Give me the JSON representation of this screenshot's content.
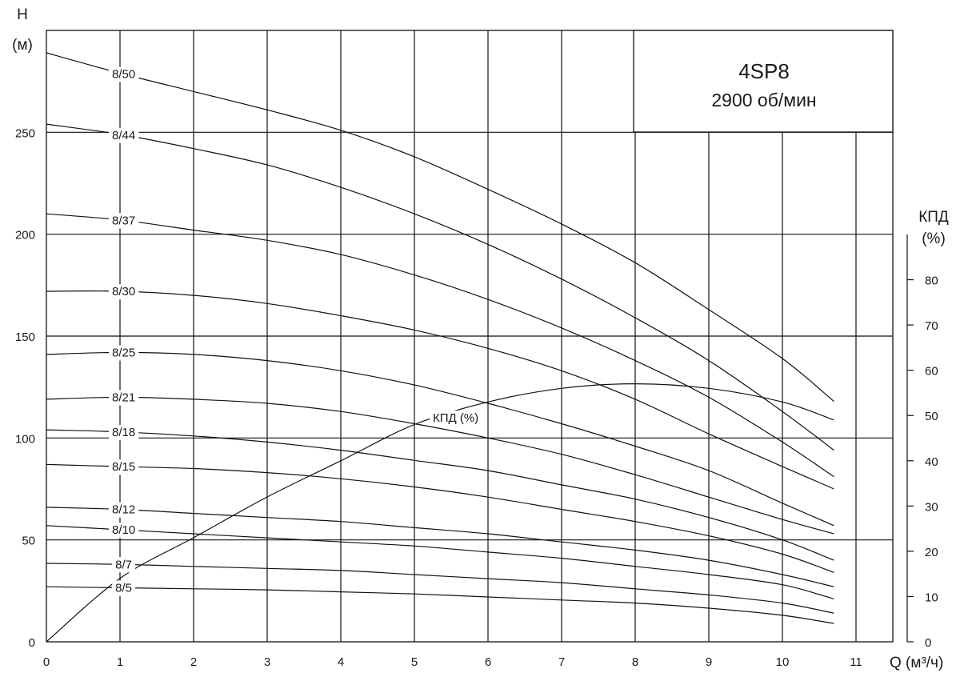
{
  "chart_data": {
    "type": "line",
    "title": "4SP8",
    "subtitle": "2900 об/мин",
    "ylabel_top": "Н",
    "ylabel_unit": "(м)",
    "xlabel": "Q (м³/ч)",
    "eff_axis_label": "КПД",
    "eff_axis_unit": "(%)",
    "xlim": [
      0,
      11.5
    ],
    "ylim": [
      0,
      300
    ],
    "eff_lim": [
      0,
      90
    ],
    "x_ticks": [
      0,
      1,
      2,
      3,
      4,
      5,
      6,
      7,
      8,
      9,
      10,
      11
    ],
    "y_ticks": [
      0,
      50,
      100,
      150,
      200,
      250
    ],
    "eff_ticks": [
      0,
      10,
      20,
      30,
      40,
      50,
      60,
      70,
      80
    ],
    "series": [
      {
        "name": "8/50",
        "x": [
          0,
          1,
          2,
          3,
          4,
          5,
          6,
          7,
          8,
          9,
          10,
          10.7
        ],
        "values": [
          289,
          279,
          270,
          261,
          251,
          238,
          222,
          205,
          186,
          163,
          139,
          118
        ]
      },
      {
        "name": "8/44",
        "x": [
          0,
          1,
          2,
          3,
          4,
          5,
          6,
          7,
          8,
          9,
          10,
          10.7
        ],
        "values": [
          254,
          249,
          242,
          234,
          223,
          210,
          195,
          178,
          159,
          138,
          113,
          94
        ]
      },
      {
        "name": "8/37",
        "x": [
          0,
          1,
          2,
          3,
          4,
          5,
          6,
          7,
          8,
          9,
          10,
          10.7
        ],
        "values": [
          210,
          207,
          202,
          197,
          190,
          180,
          168,
          154,
          138,
          120,
          98,
          81
        ]
      },
      {
        "name": "8/30",
        "x": [
          0,
          1,
          2,
          3,
          4,
          5,
          6,
          7,
          8,
          9,
          10,
          10.7
        ],
        "values": [
          172,
          172,
          170,
          166,
          160,
          153,
          144,
          133,
          119,
          102,
          86,
          75
        ]
      },
      {
        "name": "8/25",
        "x": [
          0,
          1,
          2,
          3,
          4,
          5,
          6,
          7,
          8,
          9,
          10,
          10.7
        ],
        "values": [
          141,
          142,
          141,
          138,
          133,
          126,
          117,
          107,
          96,
          84,
          68,
          57
        ]
      },
      {
        "name": "8/21",
        "x": [
          0,
          1,
          2,
          3,
          4,
          5,
          6,
          7,
          8,
          9,
          10,
          10.7
        ],
        "values": [
          119,
          120,
          119,
          117,
          113,
          107,
          100,
          92,
          82,
          71,
          60,
          53
        ]
      },
      {
        "name": "8/18",
        "x": [
          0,
          1,
          2,
          3,
          4,
          5,
          6,
          7,
          8,
          9,
          10,
          10.7
        ],
        "values": [
          104,
          103,
          101,
          98,
          94,
          89,
          84,
          77,
          70,
          61,
          50,
          40
        ]
      },
      {
        "name": "8/15",
        "x": [
          0,
          1,
          2,
          3,
          4,
          5,
          6,
          7,
          8,
          9,
          10,
          10.7
        ],
        "values": [
          87,
          86,
          85,
          83,
          80,
          76,
          71,
          65,
          59,
          52,
          43,
          34
        ]
      },
      {
        "name": "8/12",
        "x": [
          0,
          1,
          2,
          3,
          4,
          5,
          6,
          7,
          8,
          9,
          10,
          10.7
        ],
        "values": [
          66,
          65,
          63,
          61,
          59,
          56,
          53,
          49,
          45,
          40,
          33,
          27
        ]
      },
      {
        "name": "8/10",
        "x": [
          0,
          1,
          2,
          3,
          4,
          5,
          6,
          7,
          8,
          9,
          10,
          10.7
        ],
        "values": [
          57,
          55,
          53,
          51,
          49,
          47,
          44,
          41,
          37,
          33,
          28,
          21
        ]
      },
      {
        "name": "8/7",
        "x": [
          0,
          1,
          2,
          3,
          4,
          5,
          6,
          7,
          8,
          9,
          10,
          10.7
        ],
        "values": [
          38.5,
          38,
          37,
          36,
          35,
          33,
          31,
          29,
          26,
          23,
          19,
          14
        ]
      },
      {
        "name": "8/5",
        "x": [
          0,
          1,
          2,
          3,
          4,
          5,
          6,
          7,
          8,
          9,
          10,
          10.7
        ],
        "values": [
          27,
          26.5,
          26,
          25.5,
          24.5,
          23.5,
          22,
          20.5,
          19,
          16.5,
          13,
          9
        ]
      },
      {
        "name": "КПД (%)",
        "axis": "right",
        "x": [
          0,
          1,
          2,
          3,
          4,
          5,
          6,
          7,
          8,
          9,
          10,
          10.7
        ],
        "values": [
          0,
          14,
          23,
          32,
          40,
          48,
          53,
          56,
          57,
          56,
          53,
          49
        ]
      }
    ]
  }
}
